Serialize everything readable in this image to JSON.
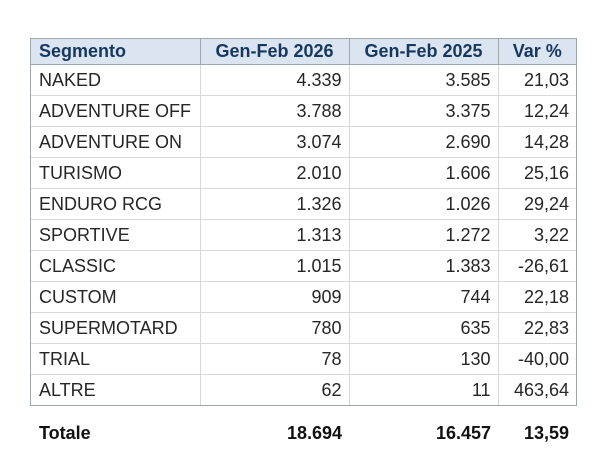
{
  "colors": {
    "page_background": "#ffffff",
    "header_background": "#dbe4f1",
    "header_text": "#17375d",
    "body_text": "#262626",
    "total_text": "#111111",
    "outer_border": "#9fa6ae",
    "grid_line": "#d8d8d8"
  },
  "chart_data": {
    "type": "table",
    "title": "",
    "columns": [
      "Segmento",
      "Gen-Feb 2026",
      "Gen-Feb 2025",
      "Var %"
    ],
    "rows": [
      [
        "NAKED",
        "4.339",
        "3.585",
        "21,03"
      ],
      [
        "ADVENTURE OFF",
        "3.788",
        "3.375",
        "12,24"
      ],
      [
        "ADVENTURE ON",
        "3.074",
        "2.690",
        "14,28"
      ],
      [
        "TURISMO",
        "2.010",
        "1.606",
        "25,16"
      ],
      [
        "ENDURO RCG",
        "1.326",
        "1.026",
        "29,24"
      ],
      [
        "SPORTIVE",
        "1.313",
        "1.272",
        "3,22"
      ],
      [
        "CLASSIC",
        "1.015",
        "1.383",
        "-26,61"
      ],
      [
        "CUSTOM",
        "909",
        "744",
        "22,18"
      ],
      [
        "SUPERMOTARD",
        "780",
        "635",
        "22,83"
      ],
      [
        "TRIAL",
        "78",
        "130",
        "-40,00"
      ],
      [
        "ALTRE",
        "62",
        "11",
        "463,64"
      ]
    ],
    "total": [
      "Totale",
      "18.694",
      "16.457",
      "13,59"
    ],
    "layout": {
      "grid": true,
      "number_format": "italian (thousands '.', decimals ',')"
    }
  }
}
